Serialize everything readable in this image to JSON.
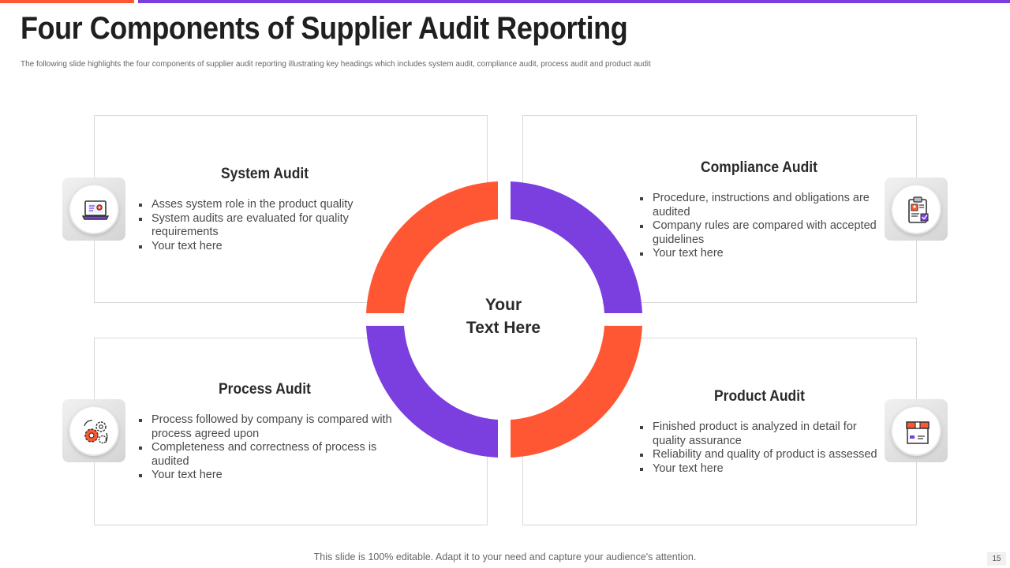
{
  "slide": {
    "title": "Four Components of Supplier Audit Reporting",
    "subtitle": "The following slide highlights the four components of supplier audit reporting illustrating key headings which includes system audit, compliance audit, process audit and product audit",
    "center_text_line1": "Your",
    "center_text_line2": "Text Here",
    "footer": "This slide is 100% editable. Adapt it to your need and capture your audience's attention.",
    "page_number": "15"
  },
  "components": [
    {
      "heading": "System Audit",
      "icon": "laptop-settings-icon",
      "bullets": [
        "Asses system role in the product quality",
        "System audits are evaluated for quality requirements",
        "Your text here"
      ]
    },
    {
      "heading": "Compliance Audit",
      "icon": "clipboard-check-icon",
      "bullets": [
        "Procedure, instructions and obligations are audited",
        "Company rules are compared with accepted guidelines",
        " Your text here"
      ]
    },
    {
      "heading": "Process Audit",
      "icon": "gears-icon",
      "bullets": [
        "Process followed by company is compared with process agreed upon",
        "Completeness and correctness of process is audited",
        "Your text here"
      ]
    },
    {
      "heading": "Product Audit",
      "icon": "product-box-icon",
      "bullets": [
        "Finished product is analyzed in detail for quality assurance",
        "Reliability and quality of product is assessed",
        "Your text here"
      ]
    }
  ],
  "colors": {
    "orange": "#ff5733",
    "purple": "#7b3fe0"
  }
}
